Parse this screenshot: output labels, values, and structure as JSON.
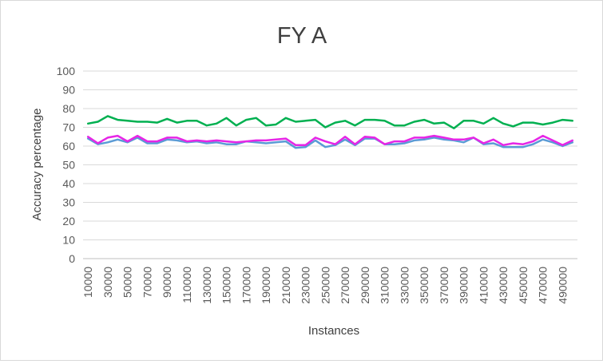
{
  "chart_data": {
    "type": "line",
    "title": "FY A",
    "xlabel": "Instances",
    "ylabel": "Accuracy percentage",
    "ylim": [
      0,
      100
    ],
    "yticks": [
      "0",
      "10",
      "20",
      "30",
      "40",
      "50",
      "60",
      "70",
      "80",
      "90",
      "100"
    ],
    "x": [
      10000,
      20000,
      30000,
      40000,
      50000,
      60000,
      70000,
      80000,
      90000,
      100000,
      110000,
      120000,
      130000,
      140000,
      150000,
      160000,
      170000,
      180000,
      190000,
      200000,
      210000,
      220000,
      230000,
      240000,
      250000,
      260000,
      270000,
      280000,
      290000,
      300000,
      310000,
      320000,
      330000,
      340000,
      350000,
      360000,
      370000,
      380000,
      390000,
      400000,
      410000,
      420000,
      430000,
      440000,
      450000,
      460000,
      470000,
      480000,
      490000,
      500000
    ],
    "xtick_labels": [
      "10000",
      "30000",
      "50000",
      "70000",
      "90000",
      "110000",
      "130000",
      "150000",
      "170000",
      "190000",
      "210000",
      "230000",
      "250000",
      "270000",
      "290000",
      "310000",
      "330000",
      "350000",
      "370000",
      "390000",
      "410000",
      "430000",
      "450000",
      "470000",
      "490000"
    ],
    "grid": true,
    "legend": "none",
    "series": [
      {
        "color": "#00b050",
        "values": [
          72,
          73,
          76,
          74,
          73.5,
          73,
          73,
          72.5,
          74.5,
          72.5,
          73.5,
          73.5,
          71,
          72,
          75,
          71,
          74,
          75,
          71,
          71.5,
          75,
          73,
          73.5,
          74,
          70,
          72.5,
          73.5,
          71,
          74,
          74,
          73.5,
          71,
          71,
          73,
          74,
          72,
          72.5,
          69.5,
          73.5,
          73.5,
          72,
          75,
          72,
          70.5,
          72.5,
          72.5,
          71.5,
          72.5,
          74,
          73.5
        ]
      },
      {
        "color": "#5b9bd5",
        "values": [
          64,
          61,
          62,
          63.5,
          62,
          64.5,
          61.5,
          61.5,
          63.5,
          63,
          62,
          62.5,
          61.5,
          62,
          61,
          61,
          62.5,
          62,
          61.5,
          62,
          62.5,
          59,
          59.5,
          63,
          59.5,
          60.5,
          63.5,
          60.5,
          64,
          64,
          61,
          61,
          61.5,
          63,
          63.5,
          64.5,
          63.5,
          63,
          62,
          64.5,
          61,
          61.5,
          59.5,
          59.5,
          59.5,
          61,
          63.5,
          62,
          60,
          62
        ]
      },
      {
        "color": "#e626e6",
        "values": [
          65,
          61.5,
          64.5,
          65.5,
          62.5,
          65.5,
          62.5,
          62.5,
          64.5,
          64.5,
          62.5,
          63,
          62.5,
          63,
          62.5,
          62,
          62.5,
          63,
          63,
          63.5,
          64,
          60.5,
          60.5,
          64.5,
          62.5,
          61,
          65,
          61,
          65,
          64.5,
          61,
          62.5,
          62.5,
          64.5,
          64.5,
          65.5,
          64.5,
          63.5,
          63.5,
          64.5,
          61.5,
          63.5,
          60.5,
          61.5,
          61,
          62.5,
          65.5,
          63,
          60.5,
          63
        ]
      }
    ]
  }
}
